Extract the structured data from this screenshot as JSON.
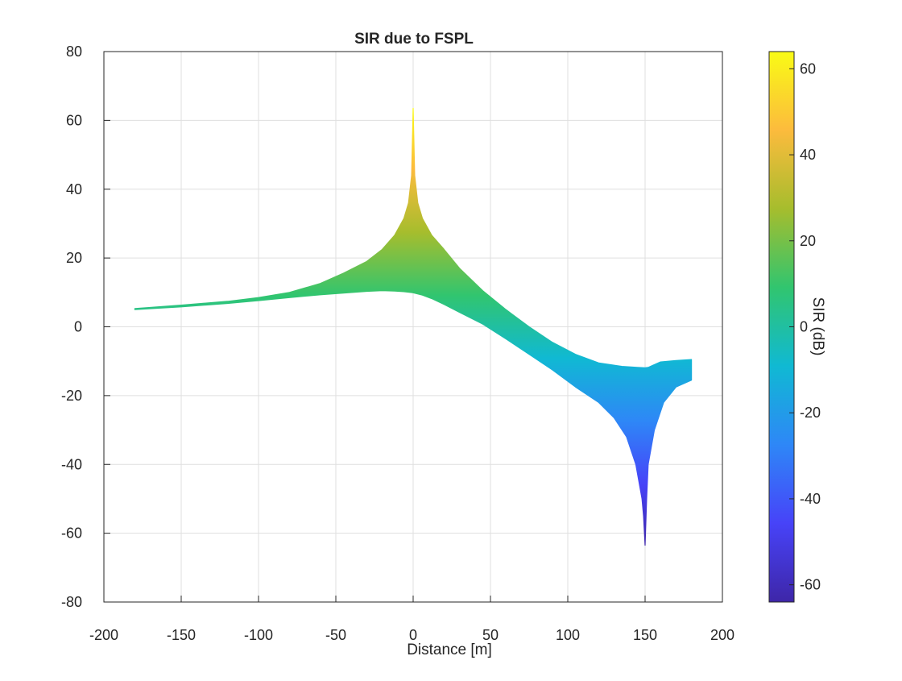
{
  "chart_data": {
    "type": "area",
    "title": "SIR due to FSPL",
    "xlabel": "Distance [m]",
    "ylabel": "",
    "xlim": [
      -200,
      200
    ],
    "ylim": [
      -80,
      80
    ],
    "xticks": [
      -200,
      -150,
      -100,
      -50,
      0,
      50,
      100,
      150,
      200
    ],
    "yticks": [
      -80,
      -60,
      -40,
      -20,
      0,
      20,
      40,
      60,
      80
    ],
    "grid": true,
    "colorbar": {
      "label": "SIR (dB)",
      "range": [
        -64,
        64
      ],
      "ticks": [
        -60,
        -40,
        -20,
        0,
        20,
        40,
        60
      ],
      "colormap": [
        "#3e26a8",
        "#4743f8",
        "#2e87f7",
        "#10b9d3",
        "#31c56f",
        "#a6bd2d",
        "#fcbb3d",
        "#f9fb15"
      ]
    },
    "series": [
      {
        "upper": {
          "x": [
            -180,
            -150,
            -120,
            -100,
            -80,
            -60,
            -45,
            -30,
            -20,
            -12,
            -6,
            -3,
            -1,
            0,
            1,
            3,
            6,
            12,
            20,
            30,
            45,
            60,
            75,
            90,
            105,
            120,
            135,
            145,
            150,
            152,
            155,
            160,
            170,
            180
          ],
          "y": [
            5.3,
            6.3,
            7.4,
            8.5,
            10.0,
            12.6,
            15.6,
            19.0,
            22.5,
            26.6,
            31.5,
            36.0,
            44.0,
            63.5,
            44.0,
            36.0,
            31.5,
            26.6,
            22.5,
            17.0,
            10.5,
            5.0,
            0.0,
            -4.5,
            -8.0,
            -10.5,
            -11.5,
            -11.8,
            -11.9,
            -11.8,
            -11.2,
            -10.2,
            -9.8,
            -9.5
          ]
        },
        "lower": {
          "x": [
            -180,
            -150,
            -120,
            -100,
            -80,
            -60,
            -45,
            -30,
            -20,
            -12,
            -6,
            0,
            6,
            12,
            20,
            30,
            45,
            60,
            75,
            90,
            105,
            120,
            130,
            138,
            144,
            148,
            149,
            150,
            151,
            152,
            156,
            162,
            170,
            180
          ],
          "y": [
            5.0,
            5.8,
            6.8,
            7.6,
            8.5,
            9.3,
            9.8,
            10.3,
            10.5,
            10.4,
            10.2,
            9.9,
            9.2,
            8.2,
            6.5,
            4.2,
            0.8,
            -3.5,
            -8.0,
            -12.5,
            -17.5,
            -22.0,
            -26.5,
            -32.0,
            -40.0,
            -50.0,
            -55.0,
            -63.5,
            -50.0,
            -40.0,
            -30.0,
            -22.0,
            -17.5,
            -15.5
          ]
        }
      }
    ]
  }
}
